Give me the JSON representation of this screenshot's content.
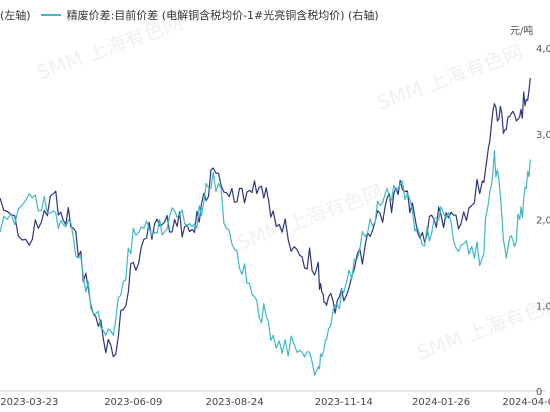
{
  "chart_data": {
    "type": "line",
    "legend_position": "top-left",
    "grid": false,
    "watermark": "SMM 上海有色网",
    "unit_right": "元/吨",
    "x_ticks": [
      "2023-03-23",
      "2023-06-09",
      "2023-08-24",
      "2023-11-14",
      "2024-01-26",
      "2024-04-0"
    ],
    "y_right_ticks": [
      "0",
      "1,0",
      "2,0",
      "3,0",
      "4,0"
    ],
    "y_right_range": [
      0,
      4000
    ],
    "colors": {
      "series1": "#2e3580",
      "series2": "#3fb8c8"
    },
    "series": [
      {
        "name": "(左轴)",
        "axis": "left",
        "x": [
          "2023-03-01",
          "2023-03-23",
          "2023-04-10",
          "2023-04-25",
          "2023-05-10",
          "2023-05-25",
          "2023-06-09",
          "2023-06-25",
          "2023-07-10",
          "2023-07-25",
          "2023-08-08",
          "2023-08-24",
          "2023-09-08",
          "2023-09-22",
          "2023-10-10",
          "2023-10-25",
          "2023-11-01",
          "2023-11-14",
          "2023-11-30",
          "2023-12-15",
          "2023-12-28",
          "2024-01-12",
          "2024-01-26",
          "2024-02-10",
          "2024-02-26",
          "2024-03-06",
          "2024-03-15",
          "2024-03-25",
          "2024-04-02"
        ],
        "values": [
          2250,
          1700,
          2300,
          1900,
          900,
          400,
          1500,
          1950,
          2000,
          1850,
          2600,
          2200,
          2450,
          2100,
          1650,
          1450,
          1000,
          1050,
          1700,
          2150,
          2350,
          1850,
          2050,
          1950,
          2450,
          3350,
          3050,
          3200,
          3650
        ]
      },
      {
        "name": "精废价差:目前价差 (电解铜含税均价-1#光亮铜含税均价) (右轴)",
        "axis": "right",
        "x": [
          "2023-03-01",
          "2023-03-23",
          "2023-04-10",
          "2023-04-25",
          "2023-05-10",
          "2023-05-25",
          "2023-06-09",
          "2023-06-25",
          "2023-07-10",
          "2023-07-25",
          "2023-08-08",
          "2023-08-24",
          "2023-09-08",
          "2023-09-22",
          "2023-10-10",
          "2023-10-25",
          "2023-11-01",
          "2023-11-14",
          "2023-11-30",
          "2023-12-15",
          "2023-12-28",
          "2024-01-12",
          "2024-01-26",
          "2024-02-10",
          "2024-02-26",
          "2024-03-06",
          "2024-03-15",
          "2024-03-25",
          "2024-04-02"
        ],
        "values": [
          1850,
          2300,
          2100,
          1800,
          900,
          650,
          1900,
          1850,
          2100,
          1950,
          2550,
          1650,
          1100,
          650,
          450,
          250,
          600,
          1150,
          1800,
          2300,
          2450,
          1700,
          2150,
          1700,
          1550,
          2800,
          1550,
          2000,
          2700
        ]
      }
    ]
  }
}
